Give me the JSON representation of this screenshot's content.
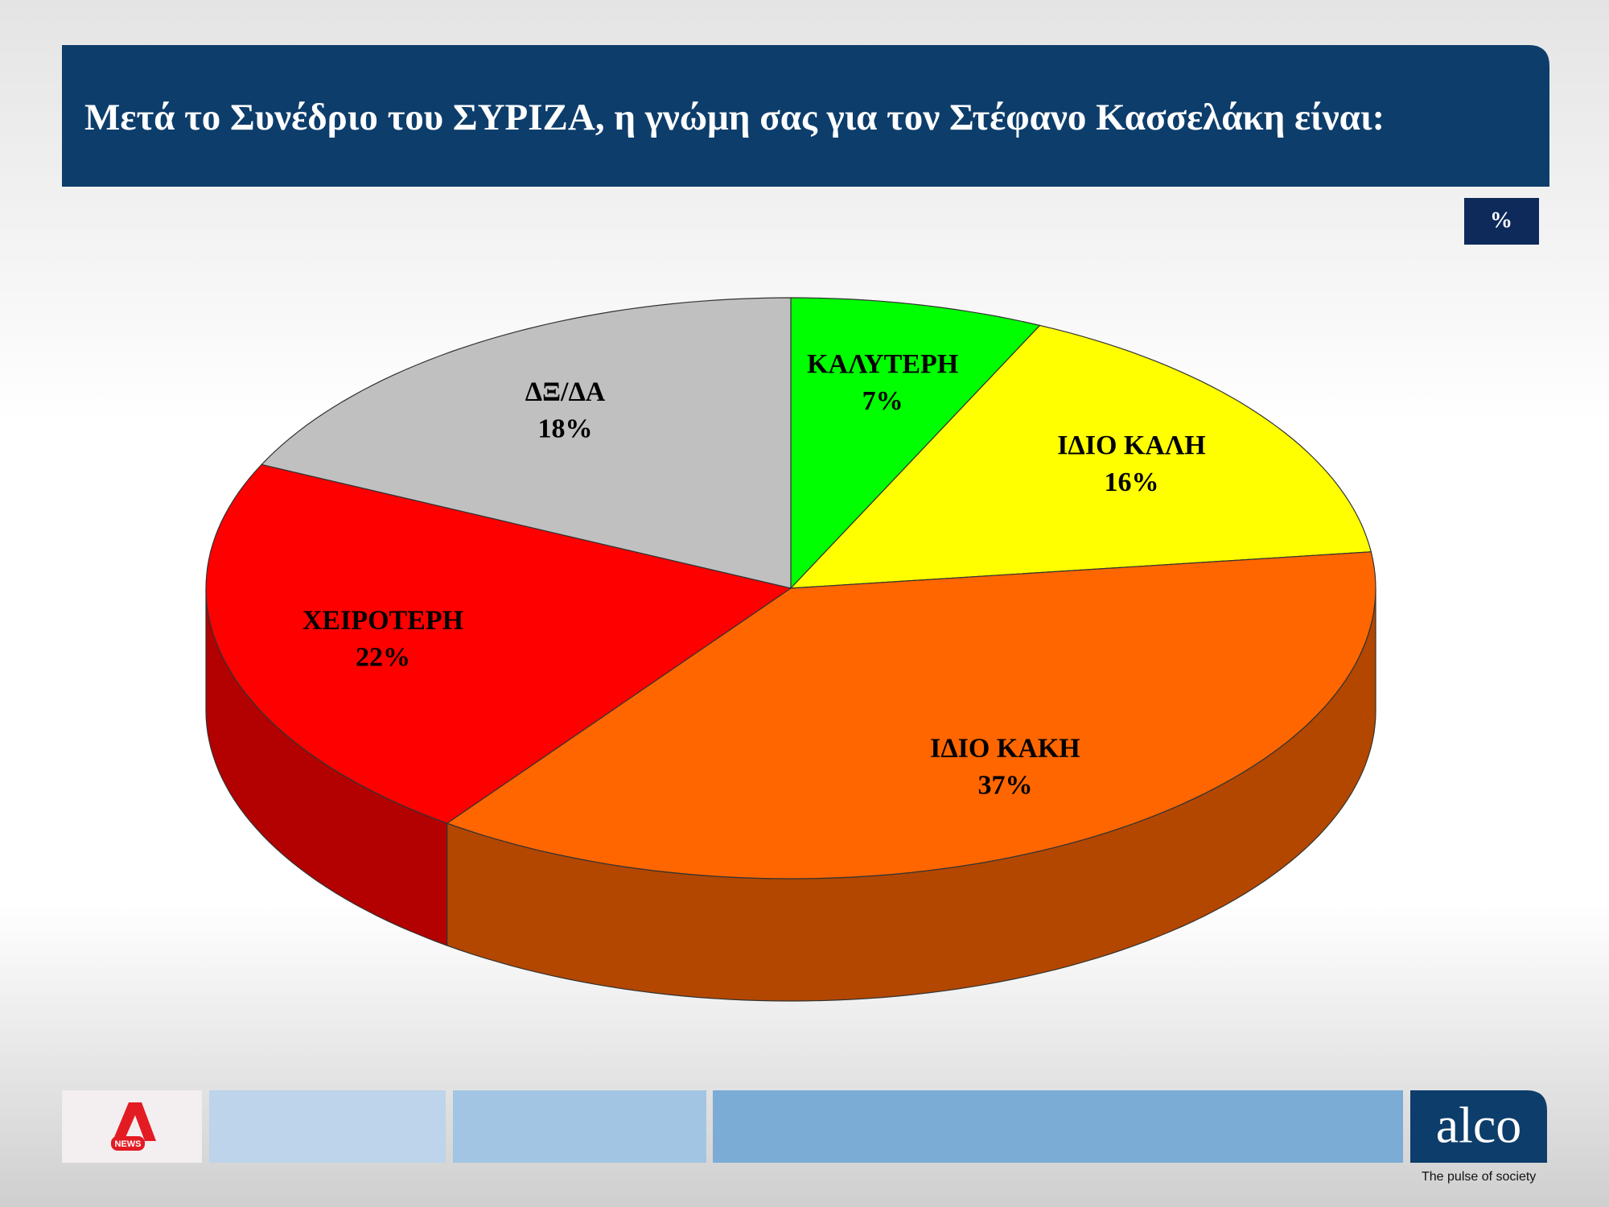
{
  "chart_data": {
    "type": "pie3d",
    "title": "Μετά το Συνέδριο του ΣΥΡΙΖΑ, η γνώμη σας για τον Στέφανο Κασσελάκη είναι:",
    "unit_label": "%",
    "categories": [
      "ΚΑΛΥΤΕΡΗ",
      "ΙΔΙΟ ΚΑΛΗ",
      "ΙΔΙΟ ΚΑΚΗ",
      "ΧΕΙΡΟΤΕΡΗ",
      "ΔΞ/ΔΑ"
    ],
    "values": [
      7,
      16,
      37,
      22,
      18
    ],
    "value_labels": [
      "7%",
      "16%",
      "37%",
      "22%",
      "18%"
    ],
    "colors": [
      "#00ff00",
      "#ffff00",
      "#ff6600",
      "#ff0000",
      "#c0c0c0"
    ]
  },
  "footer": {
    "logo_text": "NEWS",
    "brand": "alco",
    "tagline": "The pulse of society"
  }
}
